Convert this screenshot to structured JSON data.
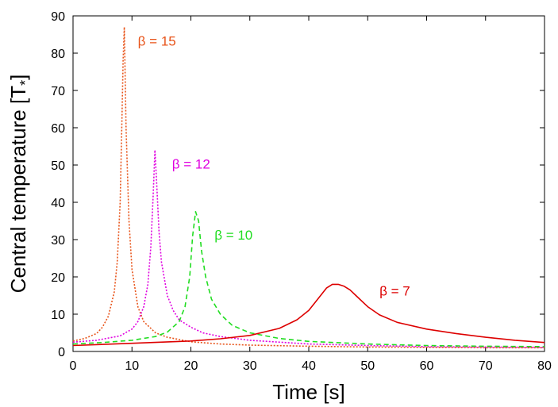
{
  "chart_data": {
    "type": "line",
    "xlabel": "Time [s]",
    "ylabel": "Central temperature [T",
    "ylabel_sub": "*",
    "ylabel_close": "]",
    "xlim": [
      0,
      80
    ],
    "ylim": [
      0,
      90
    ],
    "x_ticks": [
      0,
      10,
      20,
      30,
      40,
      50,
      60,
      70,
      80
    ],
    "y_ticks": [
      0,
      10,
      20,
      30,
      40,
      50,
      60,
      70,
      80,
      90
    ],
    "grid": false,
    "series": [
      {
        "name": "β = 15",
        "color": "#e8541a",
        "style": "dotted",
        "x": [
          0,
          2,
          4,
          5,
          6,
          7,
          7.5,
          8,
          8.3,
          8.5,
          8.7,
          9.0,
          9.5,
          10,
          11,
          12,
          14,
          16,
          20,
          25,
          30,
          40,
          50,
          60,
          70,
          80
        ],
        "y": [
          2.8,
          3.5,
          4.8,
          6.5,
          9.5,
          16,
          24,
          40,
          62,
          78,
          87,
          60,
          35,
          22,
          12,
          8,
          5,
          3.8,
          2.6,
          2.0,
          1.7,
          1.4,
          1.2,
          1.1,
          1.0,
          1.0
        ]
      },
      {
        "name": "β = 12",
        "color": "#e000e0",
        "style": "dotted",
        "x": [
          0,
          4,
          8,
          10,
          11,
          12,
          12.7,
          13.2,
          13.6,
          13.9,
          14.2,
          14.6,
          15,
          16,
          17,
          18,
          20,
          22,
          25,
          30,
          40,
          50,
          60,
          70,
          80
        ],
        "y": [
          2.5,
          3.0,
          4.2,
          6.0,
          8.0,
          12,
          18,
          28,
          42,
          54,
          45,
          32,
          24,
          15,
          11,
          8.5,
          6.5,
          5.0,
          4.0,
          3.0,
          2.0,
          1.6,
          1.3,
          1.2,
          1.1
        ]
      },
      {
        "name": "β = 10",
        "color": "#22dd22",
        "style": "dashed",
        "x": [
          0,
          5,
          10,
          14,
          16,
          18,
          19,
          19.8,
          20.3,
          20.8,
          21.3,
          21.8,
          22.5,
          23.5,
          25,
          27,
          30,
          35,
          40,
          50,
          60,
          70,
          80
        ],
        "y": [
          2.0,
          2.4,
          3.0,
          4.0,
          5.2,
          8.0,
          12,
          20,
          31,
          37.5,
          35,
          27,
          20,
          14,
          10,
          7.0,
          5.0,
          3.5,
          2.7,
          2.0,
          1.6,
          1.4,
          1.3
        ]
      },
      {
        "name": "β = 7",
        "color": "#dd0000",
        "style": "solid",
        "x": [
          0,
          10,
          20,
          25,
          30,
          35,
          38,
          40,
          42,
          43,
          44,
          45,
          46,
          47,
          48,
          50,
          52,
          55,
          60,
          65,
          70,
          75,
          80
        ],
        "y": [
          1.6,
          2.2,
          2.8,
          3.4,
          4.3,
          6.2,
          8.5,
          11,
          15,
          17,
          18,
          18,
          17.5,
          16.5,
          15,
          12,
          9.8,
          7.8,
          6.0,
          4.8,
          3.8,
          3.0,
          2.4
        ]
      }
    ],
    "annotations": [
      {
        "text": "β = 15",
        "x": 11,
        "y": 82,
        "series": 0
      },
      {
        "text": "β = 12",
        "x": 16.8,
        "y": 49,
        "series": 1
      },
      {
        "text": "β = 10",
        "x": 24,
        "y": 30,
        "series": 2
      },
      {
        "text": "β = 7",
        "x": 52,
        "y": 15,
        "series": 3
      }
    ]
  }
}
